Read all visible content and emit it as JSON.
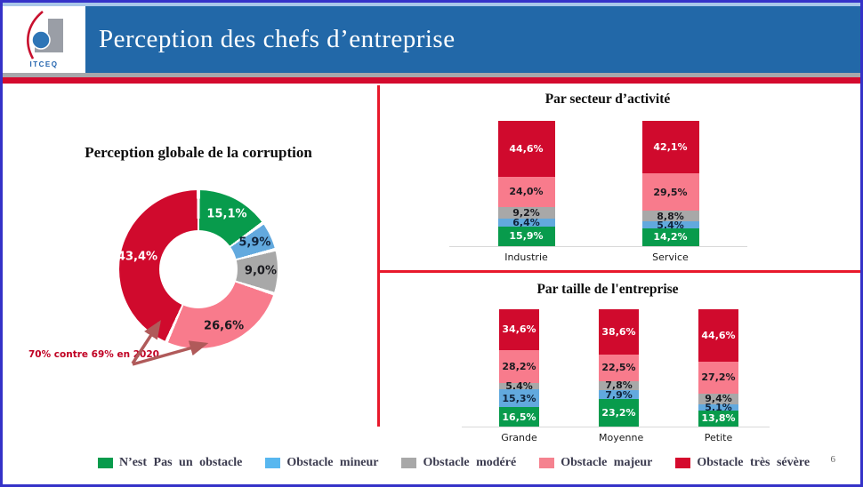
{
  "header": {
    "title": "Perception des chefs d’entreprise",
    "logo_text": "ITCEQ"
  },
  "page_number": "6",
  "annotation": {
    "text": "70% contre 69% en 2020"
  },
  "colors": {
    "frame_border": "#3532C8",
    "header_blue": "#2268A8",
    "top_strip_blue": "#A9C7E9",
    "gray_strip": "#A7A7AB",
    "red_strip": "#D40A2E",
    "divider_red": "#E8192C",
    "annotation_red": "#C00023",
    "arrow": "#B05A5A",
    "green": "#089B4C",
    "blue": "#62A9DE",
    "gray": "#A8A8A8",
    "pink": "#F87B8C",
    "red": "#D00A2D"
  },
  "legend": {
    "items": [
      {
        "label": "N’est Pas un obstacle",
        "color": "#089B4C"
      },
      {
        "label": "Obstacle mineur",
        "color": "#58B7EF"
      },
      {
        "label": "Obstacle modéré",
        "color": "#A8A8A8"
      },
      {
        "label": "Obstacle majeur",
        "color": "#F5828F"
      },
      {
        "label": "Obstacle très sévère",
        "color": "#D50A2D"
      }
    ]
  },
  "chart_data": [
    {
      "type": "pie",
      "subtype": "donut",
      "title": "Perception globale de la corruption",
      "unit": "percent",
      "segments": [
        {
          "label": "N'est Pas un obstacle",
          "value": 15.1,
          "display": "15,1%",
          "color": "#089B4C",
          "label_color": "#FFFFFF"
        },
        {
          "label": "Obstacle mineur",
          "value": 5.9,
          "display": "5,9%",
          "color": "#62A9DE",
          "label_color": "#10233B"
        },
        {
          "label": "Obstacle modéré",
          "value": 9.0,
          "display": "9,0%",
          "color": "#A8A8A8",
          "label_color": "#1A1A1F"
        },
        {
          "label": "Obstacle majeur",
          "value": 26.6,
          "display": "26,6%",
          "color": "#F87B8C",
          "label_color": "#1A1A1F"
        },
        {
          "label": "Obstacle très sévère",
          "value": 43.4,
          "display": "43,4%",
          "color": "#D00A2D",
          "label_color": "#FFFFFF"
        }
      ],
      "annotation": "70% contre 69% en 2020"
    },
    {
      "type": "bar",
      "subtype": "stacked",
      "title": "Par secteur d’activité",
      "categories": [
        "Industrie",
        "Service"
      ],
      "stack_order": "bottom-to-top",
      "series": [
        {
          "name": "N'est Pas un obstacle",
          "color": "#089B4C",
          "label_color": "#FFFFFF",
          "values": [
            15.9,
            14.2
          ],
          "display": [
            "15,9%",
            "14,2%"
          ]
        },
        {
          "name": "Obstacle mineur",
          "color": "#62A9DE",
          "label_color": "#10233B",
          "values": [
            6.4,
            5.4
          ],
          "display": [
            "6,4%",
            "5,4%"
          ]
        },
        {
          "name": "Obstacle modéré",
          "color": "#A8A8A8",
          "label_color": "#1A1A1F",
          "values": [
            9.2,
            8.8
          ],
          "display": [
            "9,2%",
            "8,8%"
          ]
        },
        {
          "name": "Obstacle majeur",
          "color": "#F87B8C",
          "label_color": "#1A1A1F",
          "values": [
            24.0,
            29.5
          ],
          "display": [
            "24,0%",
            "29,5%"
          ]
        },
        {
          "name": "Obstacle très sévère",
          "color": "#D00A2D",
          "label_color": "#FFFFFF",
          "values": [
            44.6,
            42.1
          ],
          "display": [
            "44,6%",
            "42,1%"
          ]
        }
      ]
    },
    {
      "type": "bar",
      "subtype": "stacked",
      "title": "Par taille de l'entreprise",
      "categories": [
        "Grande",
        "Moyenne",
        "Petite"
      ],
      "stack_order": "bottom-to-top",
      "series": [
        {
          "name": "N'est Pas un obstacle",
          "color": "#089B4C",
          "label_color": "#FFFFFF",
          "values": [
            16.5,
            23.2,
            13.8
          ],
          "display": [
            "16,5%",
            "23,2%",
            "13,8%"
          ]
        },
        {
          "name": "Obstacle mineur",
          "color": "#62A9DE",
          "label_color": "#10233B",
          "values": [
            15.3,
            7.9,
            5.1
          ],
          "display": [
            "15,3%",
            "7,9%",
            "5,1%"
          ]
        },
        {
          "name": "Obstacle modéré",
          "color": "#A8A8A8",
          "label_color": "#1A1A1F",
          "values": [
            5.4,
            7.8,
            9.4
          ],
          "display": [
            "5,4%",
            "7,8%",
            "9,4%"
          ]
        },
        {
          "name": "Obstacle majeur",
          "color": "#F87B8C",
          "label_color": "#1A1A1F",
          "values": [
            28.2,
            22.5,
            27.2
          ],
          "display": [
            "28,2%",
            "22,5%",
            "27,2%"
          ]
        },
        {
          "name": "Obstacle très sévère",
          "color": "#D00A2D",
          "label_color": "#FFFFFF",
          "values": [
            34.6,
            38.6,
            44.6
          ],
          "display": [
            "34,6%",
            "38,6%",
            "44,6%"
          ]
        }
      ]
    }
  ]
}
